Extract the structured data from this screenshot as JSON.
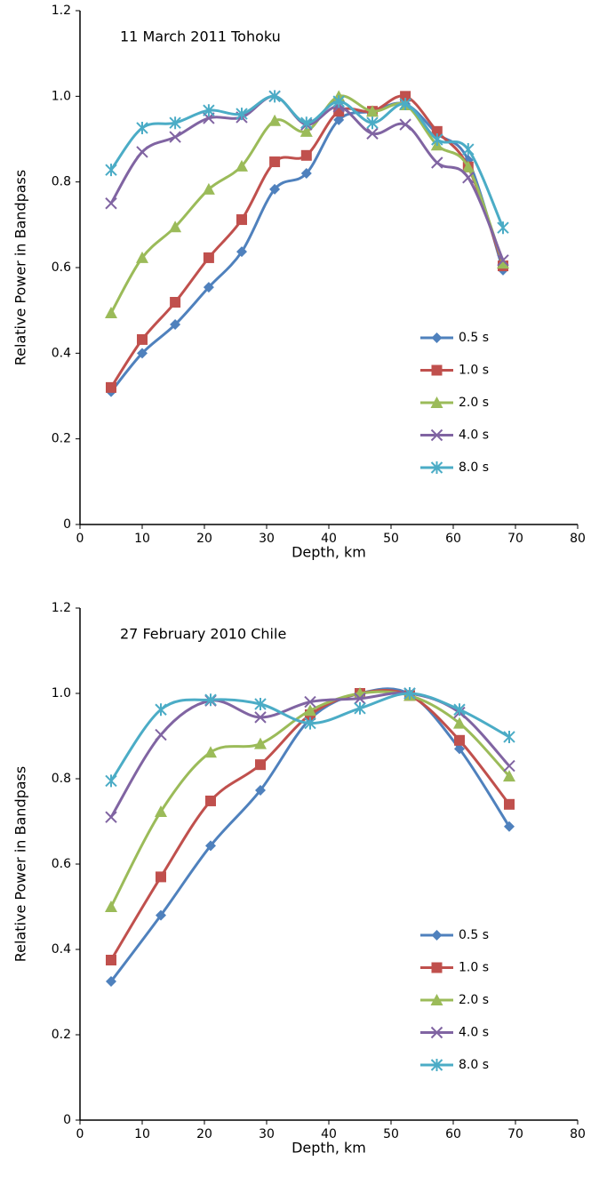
{
  "chart_data": [
    {
      "type": "line",
      "title": "11 March 2011 Tohoku",
      "x_label": "Depth, km",
      "y_label": "Relative Power in Bandpass",
      "x": [
        5,
        10,
        15.3,
        20.7,
        26,
        31.3,
        36.4,
        41.6,
        47,
        52.3,
        57.4,
        62.4,
        68
      ],
      "series": [
        {
          "name": "0.5 s",
          "color": "#4f81bd",
          "marker": "diamond",
          "values": [
            0.31,
            0.4,
            0.467,
            0.554,
            0.637,
            0.783,
            0.82,
            0.945,
            0.965,
            0.982,
            0.913,
            0.851,
            0.594
          ]
        },
        {
          "name": "1.0 s",
          "color": "#c0504d",
          "marker": "square",
          "values": [
            0.32,
            0.432,
            0.519,
            0.623,
            0.712,
            0.847,
            0.862,
            0.965,
            0.965,
            1.0,
            0.918,
            0.835,
            0.604
          ]
        },
        {
          "name": "2.0 s",
          "color": "#9bbb59",
          "marker": "triangle",
          "values": [
            0.494,
            0.623,
            0.695,
            0.783,
            0.837,
            0.943,
            0.918,
            1.0,
            0.965,
            0.98,
            0.886,
            0.835,
            0.61
          ]
        },
        {
          "name": "4.0 s",
          "color": "#8064a2",
          "marker": "x",
          "values": [
            0.75,
            0.87,
            0.905,
            0.949,
            0.951,
            1.0,
            0.934,
            0.976,
            0.913,
            0.934,
            0.845,
            0.81,
            0.617
          ]
        },
        {
          "name": "8.0 s",
          "color": "#4bacc6",
          "marker": "star",
          "values": [
            0.828,
            0.926,
            0.938,
            0.967,
            0.959,
            1.0,
            0.938,
            0.988,
            0.938,
            0.982,
            0.899,
            0.876,
            0.693
          ]
        }
      ],
      "xlim": [
        0,
        80
      ],
      "xticks": [
        0,
        10,
        20,
        30,
        40,
        50,
        60,
        70,
        80
      ],
      "ylim": [
        0,
        1.2
      ],
      "yticks": [
        0,
        0.2,
        0.4,
        0.6,
        0.8,
        {
          "value": 1,
          "label": "1.0"
        },
        1.2
      ],
      "grid": false,
      "legend": "right"
    },
    {
      "type": "line",
      "title": "27 February 2010 Chile",
      "x_label": "Depth, km",
      "y_label": "Relative Power in Bandpass",
      "x": [
        5,
        13,
        21,
        29,
        37,
        45,
        53,
        61,
        69
      ],
      "series": [
        {
          "name": "0.5 s",
          "color": "#4f81bd",
          "marker": "diamond",
          "values": [
            0.325,
            0.48,
            0.643,
            0.773,
            0.94,
            1.0,
            0.998,
            0.87,
            0.688
          ]
        },
        {
          "name": "1.0 s",
          "color": "#c0504d",
          "marker": "square",
          "values": [
            0.375,
            0.57,
            0.748,
            0.833,
            0.95,
            1.0,
            0.995,
            0.89,
            0.74
          ]
        },
        {
          "name": "2.0 s",
          "color": "#9bbb59",
          "marker": "triangle",
          "values": [
            0.5,
            0.723,
            0.862,
            0.882,
            0.96,
            1.0,
            0.995,
            0.93,
            0.806
          ]
        },
        {
          "name": "4.0 s",
          "color": "#8064a2",
          "marker": "x",
          "values": [
            0.71,
            0.903,
            0.983,
            0.944,
            0.98,
            0.988,
            1.0,
            0.955,
            0.83
          ]
        },
        {
          "name": "8.0 s",
          "color": "#4bacc6",
          "marker": "star",
          "values": [
            0.795,
            0.962,
            0.985,
            0.975,
            0.93,
            0.965,
            1.0,
            0.962,
            0.898
          ]
        }
      ],
      "xlim": [
        0,
        80
      ],
      "xticks": [
        0,
        10,
        20,
        30,
        40,
        50,
        60,
        70,
        80
      ],
      "ylim": [
        0,
        1.2
      ],
      "yticks": [
        0,
        0.2,
        0.4,
        0.6,
        0.8,
        {
          "value": 1,
          "label": "1.0"
        },
        1.2
      ],
      "grid": false,
      "legend": "right"
    }
  ]
}
